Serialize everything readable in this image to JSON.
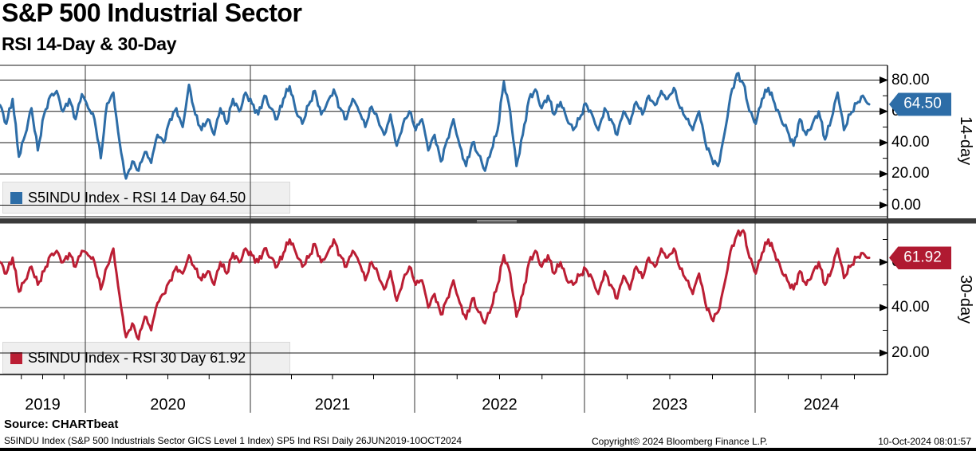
{
  "header": {
    "title": "S&P 500 Industrial Sector",
    "subtitle": "RSI 14-Day & 30-Day"
  },
  "source": {
    "label": "Source: CHARTbeat"
  },
  "footer": {
    "description": "S5INDU Index (S&P 500 Industrials Sector GICS Level 1 Index) SP5 Ind RSI  Daily 26JUN2019-10OCT2024",
    "copyright": "Copyright© 2024 Bloomberg Finance L.P.",
    "timestamp": "10-Oct-2024 08:01:57"
  },
  "colors": {
    "line_blue": "#2d6da7",
    "line_red": "#bb1e34",
    "badge_blue": "#2d6da7",
    "badge_red": "#b01a31",
    "legend_bg": "#efefef",
    "grid": "#1a1a1a",
    "divider": "#3a3a3a"
  },
  "chart_data": [
    {
      "type": "line",
      "panel": "top",
      "legend": "S5INDU Index - RSI 14 Day 64.50",
      "series_name": "S5INDU Index - RSI 14 Day",
      "axis_label": "14-day",
      "last_value": 64.5,
      "last_label": "64.50",
      "color": "#2d6da7",
      "yticks": [
        80,
        60,
        40,
        20,
        0
      ],
      "minor_yticks": [
        70,
        50,
        30,
        10
      ],
      "ylim": [
        0,
        91
      ],
      "x_start": "26JUN2019",
      "x_end": "10OCT2024",
      "values": [
        64,
        52,
        68,
        31,
        45,
        62,
        35,
        58,
        70,
        73,
        60,
        68,
        55,
        71,
        62,
        55,
        30,
        65,
        72,
        40,
        17,
        28,
        22,
        34,
        27,
        45,
        40,
        55,
        62,
        50,
        77,
        58,
        48,
        55,
        45,
        62,
        52,
        68,
        60,
        72,
        65,
        58,
        70,
        62,
        55,
        68,
        76,
        60,
        52,
        64,
        73,
        58,
        66,
        74,
        62,
        55,
        68,
        60,
        50,
        63,
        55,
        45,
        58,
        38,
        52,
        60,
        48,
        55,
        35,
        45,
        28,
        42,
        55,
        38,
        25,
        40,
        32,
        22,
        35,
        48,
        79,
        60,
        25,
        45,
        68,
        74,
        62,
        70,
        58,
        66,
        55,
        48,
        55,
        65,
        58,
        48,
        62,
        55,
        45,
        60,
        52,
        66,
        58,
        70,
        64,
        73,
        68,
        75,
        62,
        55,
        48,
        60,
        40,
        30,
        25,
        45,
        70,
        84,
        78,
        60,
        52,
        68,
        75,
        65,
        55,
        48,
        38,
        55,
        45,
        52,
        60,
        42,
        55,
        72,
        48,
        58,
        65,
        70,
        64.5
      ],
      "texture_amplitude": 2.4
    },
    {
      "type": "line",
      "panel": "bottom",
      "legend": "S5INDU Index - RSI 30 Day 61.92",
      "series_name": "S5INDU Index - RSI 30 Day",
      "axis_label": "30-day",
      "last_value": 61.92,
      "last_label": "61.92",
      "color": "#bb1e34",
      "yticks": [
        60,
        40,
        20
      ],
      "minor_yticks": [
        70,
        50,
        30
      ],
      "ylim": [
        10,
        77
      ],
      "x_start": "26JUN2019",
      "x_end": "10OCT2024",
      "values": [
        60,
        55,
        62,
        47,
        52,
        58,
        50,
        56,
        63,
        65,
        60,
        64,
        58,
        65,
        63,
        60,
        48,
        58,
        66,
        45,
        27,
        33,
        26,
        36,
        30,
        42,
        46,
        52,
        58,
        55,
        63,
        57,
        52,
        56,
        50,
        60,
        55,
        64,
        60,
        66,
        63,
        60,
        66,
        62,
        58,
        64,
        70,
        64,
        58,
        62,
        68,
        60,
        64,
        70,
        63,
        58,
        65,
        60,
        52,
        60,
        55,
        48,
        56,
        43,
        52,
        58,
        50,
        52,
        40,
        46,
        37,
        44,
        52,
        42,
        35,
        44,
        38,
        33,
        40,
        50,
        63,
        55,
        36,
        46,
        60,
        65,
        58,
        63,
        55,
        60,
        52,
        50,
        54,
        57,
        53,
        46,
        56,
        50,
        44,
        54,
        48,
        58,
        53,
        62,
        58,
        66,
        62,
        66,
        57,
        52,
        46,
        55,
        42,
        35,
        38,
        50,
        65,
        72,
        74,
        62,
        55,
        64,
        70,
        64,
        57,
        52,
        48,
        56,
        50,
        55,
        60,
        50,
        56,
        66,
        53,
        58,
        62,
        64,
        61.92
      ],
      "texture_amplitude": 1.7
    }
  ],
  "x_axis": {
    "years": [
      "2019",
      "2020",
      "2021",
      "2022",
      "2023",
      "2024"
    ]
  }
}
